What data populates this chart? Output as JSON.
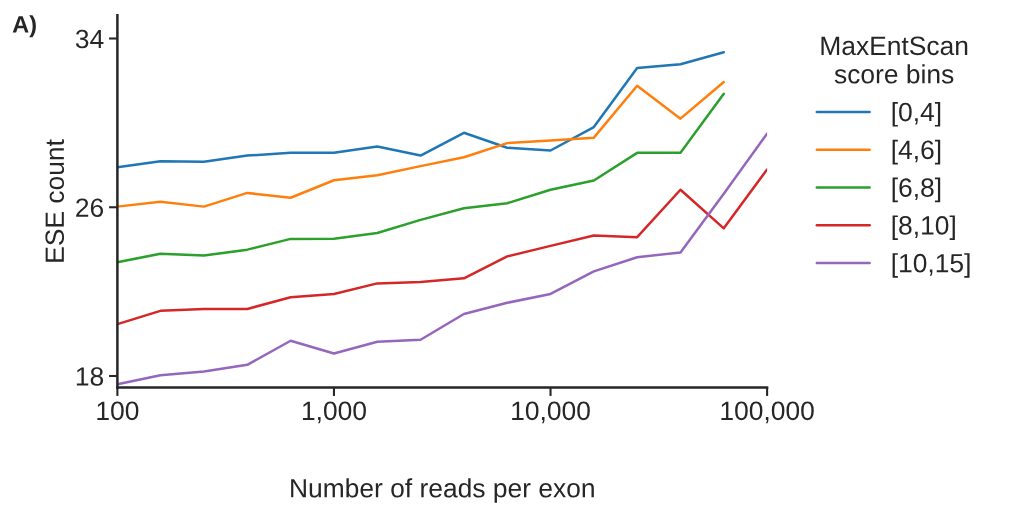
{
  "chart_data": {
    "type": "line",
    "xlabel": "Number of reads per exon",
    "ylabel": "ESE count",
    "legend_title": "MaxEntScan\nscore bins",
    "annotations": [
      "A)"
    ],
    "x": [
      100,
      158,
      251,
      398,
      631,
      1000,
      1585,
      2512,
      3981,
      6310,
      10000,
      15849,
      25119,
      39811,
      63096,
      100000
    ],
    "series": [
      {
        "name": "[0,4]",
        "color": "#1f77b4",
        "values": [
          27.9,
          28.18,
          28.16,
          28.45,
          28.58,
          28.58,
          28.88,
          28.45,
          29.53,
          28.82,
          28.69,
          29.8,
          32.6,
          32.78,
          33.35,
          null
        ]
      },
      {
        "name": "[4,6]",
        "color": "#ff7f0e",
        "values": [
          26.03,
          26.26,
          26.03,
          26.68,
          26.45,
          27.28,
          27.52,
          27.95,
          28.37,
          29.04,
          29.17,
          29.3,
          31.76,
          30.2,
          31.94,
          null
        ]
      },
      {
        "name": "[6,8]",
        "color": "#2ca02c",
        "values": [
          23.39,
          23.8,
          23.71,
          23.99,
          24.5,
          24.51,
          24.78,
          25.4,
          25.95,
          26.19,
          26.83,
          27.27,
          28.58,
          28.58,
          31.38,
          null
        ]
      },
      {
        "name": "[8,10]",
        "color": "#d62728",
        "values": [
          20.46,
          21.09,
          21.18,
          21.18,
          21.73,
          21.89,
          22.39,
          22.46,
          22.63,
          23.67,
          24.17,
          24.66,
          24.58,
          26.83,
          25.0,
          27.79
        ]
      },
      {
        "name": "[10,15]",
        "color": "#9467bd",
        "values": [
          17.61,
          18.04,
          18.21,
          18.53,
          19.67,
          19.07,
          19.62,
          19.72,
          20.94,
          21.47,
          21.89,
          22.96,
          23.63,
          23.86,
          26.64,
          29.49
        ]
      }
    ],
    "log": "x",
    "xlim": [
      100,
      100000
    ],
    "ylim": [
      17.45,
      35.1
    ],
    "xticks": [
      100,
      {
        "value": 1000,
        "label": "1,000"
      },
      {
        "value": 10000,
        "label": "10,000"
      },
      {
        "value": 100000,
        "label": "100,000"
      }
    ],
    "yticks": [
      18,
      26,
      34
    ],
    "grid": false,
    "legend": "right",
    "marker": "none",
    "line_style": "solid"
  }
}
